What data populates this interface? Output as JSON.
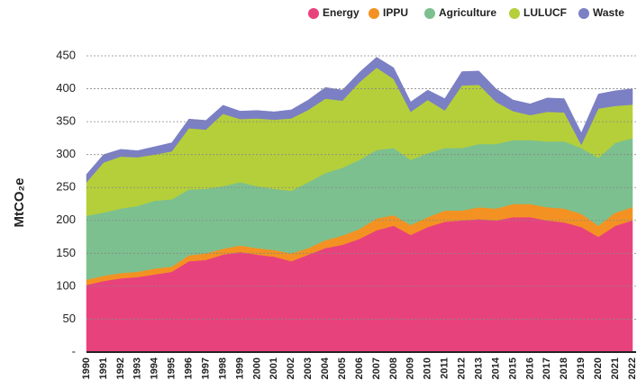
{
  "chart_data": {
    "type": "stacked_area",
    "ylabel": "MtCO₂e",
    "categories": [
      "1990",
      "1991",
      "1992",
      "1993",
      "1994",
      "1995",
      "1996",
      "1997",
      "1998",
      "1999",
      "2000",
      "2001",
      "2002",
      "2003",
      "2004",
      "2005",
      "2006",
      "2007",
      "2008",
      "2009",
      "2010",
      "2011",
      "2012",
      "2013",
      "2014",
      "2015",
      "2016",
      "2017",
      "2018",
      "2019",
      "2020",
      "2021",
      "2022"
    ],
    "series": [
      {
        "name": "Energy",
        "color": "#e8427c",
        "values": [
          102,
          108,
          112,
          114,
          118,
          122,
          138,
          140,
          148,
          152,
          148,
          145,
          138,
          148,
          158,
          163,
          172,
          185,
          192,
          178,
          190,
          198,
          200,
          202,
          200,
          205,
          205,
          200,
          197,
          190,
          175,
          192,
          200
        ]
      },
      {
        "name": "IPPU",
        "color": "#f39222",
        "values": [
          8,
          8,
          8,
          8,
          9,
          8,
          9,
          10,
          9,
          10,
          10,
          10,
          12,
          10,
          12,
          14,
          15,
          18,
          16,
          15,
          15,
          17,
          15,
          18,
          18,
          20,
          20,
          20,
          21,
          20,
          17,
          20,
          20
        ]
      },
      {
        "name": "Agriculture",
        "color": "#7cc08f",
        "values": [
          97,
          96,
          98,
          100,
          103,
          102,
          100,
          98,
          95,
          96,
          94,
          93,
          95,
          100,
          102,
          103,
          105,
          104,
          102,
          99,
          97,
          95,
          95,
          96,
          98,
          97,
          97,
          100,
          102,
          100,
          103,
          106,
          105
        ]
      },
      {
        "name": "LULUCF",
        "color": "#b5cf3a",
        "values": [
          51,
          76,
          79,
          74,
          70,
          73,
          93,
          90,
          110,
          96,
          103,
          105,
          110,
          110,
          113,
          102,
          118,
          125,
          105,
          73,
          81,
          57,
          95,
          90,
          64,
          44,
          38,
          45,
          44,
          5,
          75,
          56,
          51
        ]
      },
      {
        "name": "Waste",
        "color": "#7b7fc4",
        "values": [
          12,
          12,
          11,
          10,
          12,
          13,
          14,
          14,
          13,
          12,
          12,
          12,
          13,
          15,
          17,
          16,
          15,
          16,
          17,
          15,
          15,
          18,
          21,
          21,
          20,
          17,
          17,
          21,
          21,
          18,
          22,
          23,
          24
        ]
      }
    ],
    "ylim": [
      0,
      450
    ],
    "yticks": [
      {
        "value": 0,
        "label": "-"
      },
      50,
      100,
      150,
      200,
      250,
      300,
      350,
      400,
      450
    ],
    "grid": true,
    "legend": "top-right"
  }
}
